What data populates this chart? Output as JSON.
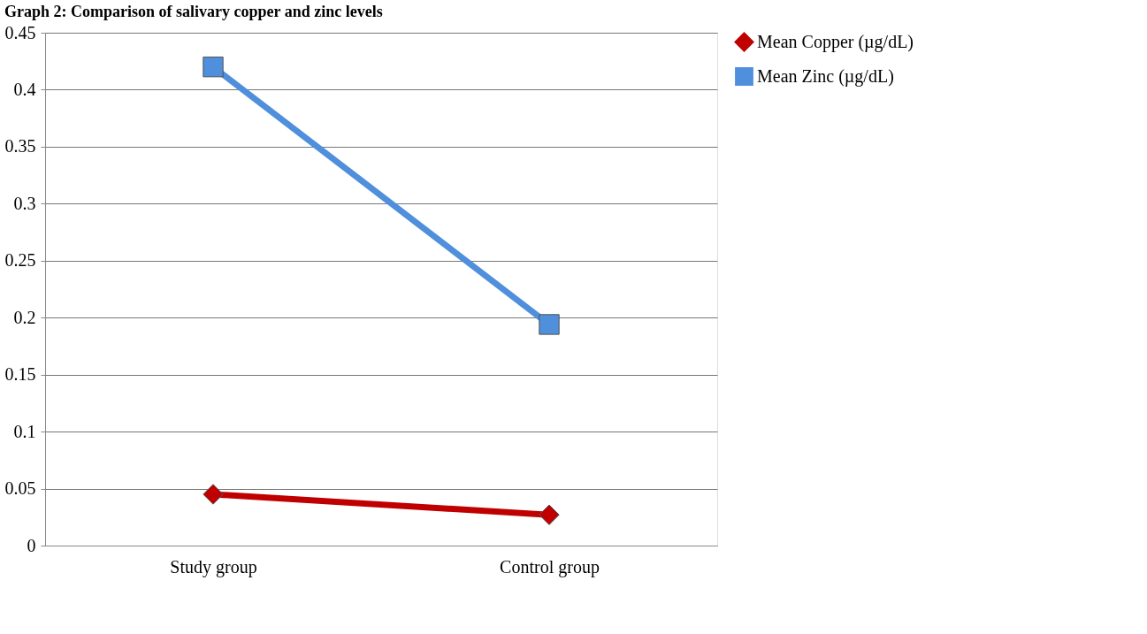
{
  "chart_data": {
    "type": "line",
    "title": "Graph 2: Comparison of salivary copper and zinc levels",
    "categories": [
      "Study group",
      "Control group"
    ],
    "series": [
      {
        "name": "Mean Copper (µg/dL)",
        "color": "#c00000",
        "marker": "diamond",
        "values": [
          0.045,
          0.027
        ]
      },
      {
        "name": "Mean Zinc (µg/dL)",
        "color": "#4f8fdc",
        "marker": "square",
        "values": [
          0.42,
          0.194
        ]
      }
    ],
    "ylim": [
      0,
      0.45
    ],
    "yticks": [
      0,
      0.05,
      0.1,
      0.15,
      0.2,
      0.25,
      0.3,
      0.35,
      0.4,
      0.45
    ],
    "grid": "y",
    "legend": "right"
  }
}
